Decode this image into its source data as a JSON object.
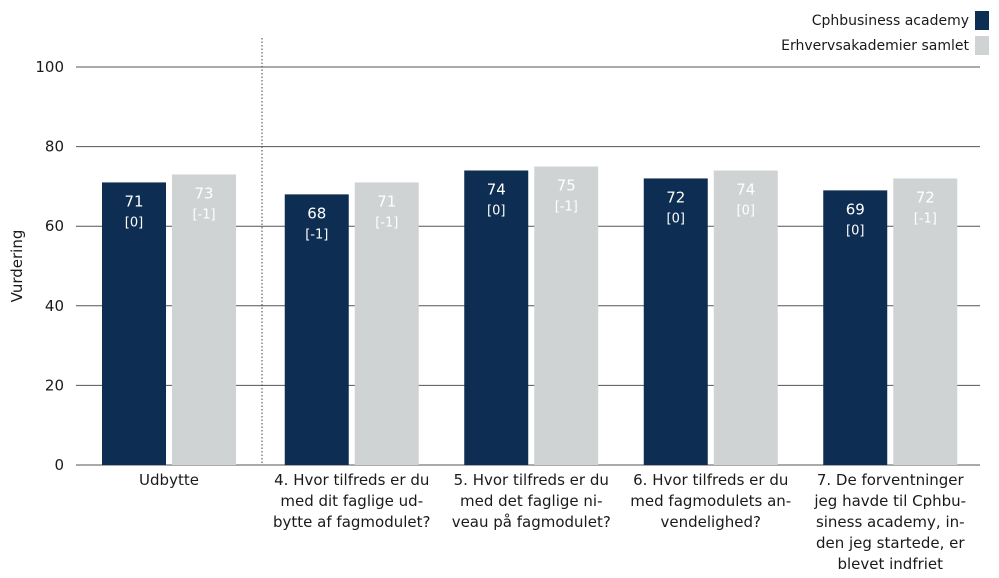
{
  "chart_data": {
    "type": "bar",
    "title": "",
    "xlabel": "",
    "ylabel": "Vurdering",
    "ylim": [
      0,
      100
    ],
    "yticks": [
      0,
      20,
      40,
      60,
      80,
      100
    ],
    "grid": true,
    "legend_position": "top-right",
    "categories": [
      [
        "Udbytte"
      ],
      [
        "4. Hvor tilfreds er du",
        "med dit faglige ud-",
        "bytte af fagmodulet?"
      ],
      [
        "5. Hvor tilfreds er du",
        "med det faglige ni-",
        "veau på fagmodulet?"
      ],
      [
        "6. Hvor tilfreds er du",
        "med fagmodulets an-",
        "vendelighed?"
      ],
      [
        "7. De forventninger",
        "jeg havde til Cphbu-",
        "siness academy, in-",
        "den jeg startede, er",
        "blevet indfriet"
      ]
    ],
    "series": [
      {
        "name": "Cphbusiness academy",
        "color": "#0d2d52",
        "label_color": "#ffffff",
        "values": [
          71,
          68,
          74,
          72,
          69
        ],
        "sublabels": [
          "[0]",
          "[-1]",
          "[0]",
          "[0]",
          "[0]"
        ]
      },
      {
        "name": "Erhvervsakademier samlet",
        "color": "#d0d3d4",
        "label_color": "#ffffff",
        "values": [
          73,
          71,
          75,
          74,
          72
        ],
        "sublabels": [
          "[-1]",
          "[-1]",
          "[-1]",
          "[0]",
          "[-1]"
        ]
      }
    ],
    "divider_after_category": 0
  }
}
